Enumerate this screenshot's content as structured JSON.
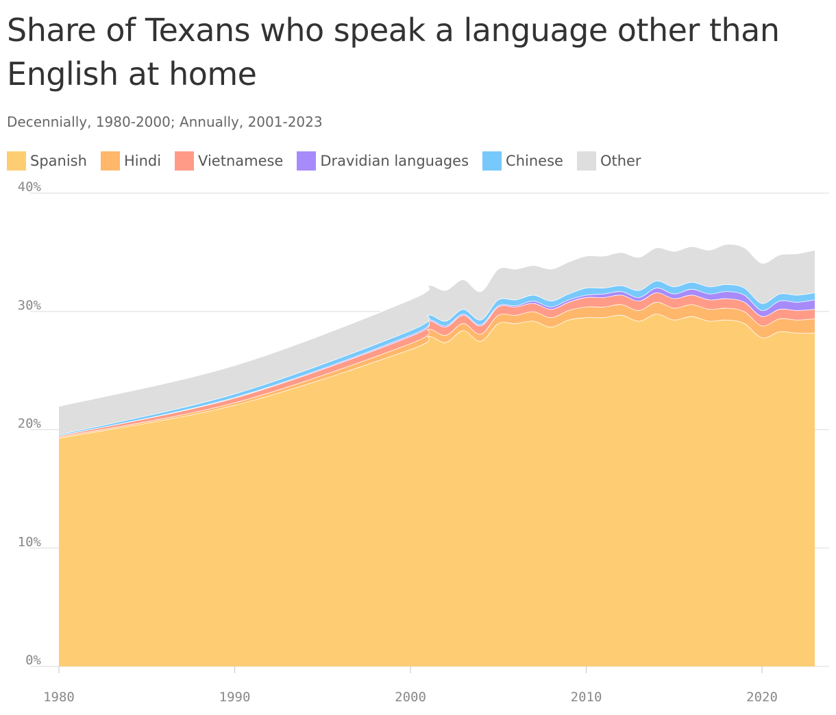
{
  "title": "Share of Texans who speak a language other than English at home",
  "subtitle": "Decennially, 1980-2000; Annually, 2001-2023",
  "colors": {
    "Spanish": "#fecd73",
    "Hindi": "#ffb76b",
    "Vietnamese": "#ff9b87",
    "Dravidian languages": "#a78bfa",
    "Chinese": "#77c9fc",
    "Other": "#dddedd",
    "grid": "#e2e2e2",
    "tick": "#888888"
  },
  "chart_data": {
    "type": "area",
    "stacked": true,
    "title": "Share of Texans who speak a language other than English at home",
    "subtitle": "Decennially, 1980-2000; Annually, 2001-2023",
    "xlabel": "",
    "ylabel": "",
    "ylim": [
      0,
      40
    ],
    "xlim": [
      1980,
      2023
    ],
    "legend_position": "top-left",
    "grid": true,
    "y_ticks": [
      0,
      10,
      20,
      30,
      40
    ],
    "y_tick_labels": [
      "0%",
      "10%",
      "20%",
      "30%",
      "40%"
    ],
    "x_ticks": [
      1980,
      1990,
      2000,
      2010,
      2020
    ],
    "x_tick_labels": [
      "1980",
      "1990",
      "2000",
      "2010",
      "2020"
    ],
    "x": [
      1980,
      1990,
      2000,
      2001,
      2002,
      2003,
      2004,
      2005,
      2006,
      2007,
      2008,
      2009,
      2010,
      2011,
      2012,
      2013,
      2014,
      2015,
      2016,
      2017,
      2018,
      2019,
      2020,
      2021,
      2022,
      2023
    ],
    "series": [
      {
        "name": "Spanish",
        "values": [
          19.3,
          22.1,
          26.8,
          27.9,
          27.4,
          28.4,
          27.5,
          29.0,
          29.0,
          29.2,
          28.7,
          29.3,
          29.5,
          29.5,
          29.7,
          29.2,
          29.8,
          29.3,
          29.6,
          29.2,
          29.3,
          29.0,
          27.8,
          28.3,
          28.2,
          28.2
        ]
      },
      {
        "name": "Hindi",
        "values": [
          0.1,
          0.2,
          0.5,
          0.6,
          0.6,
          0.6,
          0.6,
          0.7,
          0.7,
          0.8,
          0.8,
          0.8,
          0.9,
          0.9,
          0.9,
          0.9,
          1.0,
          1.0,
          1.0,
          1.0,
          1.0,
          1.0,
          1.0,
          1.1,
          1.1,
          1.2
        ]
      },
      {
        "name": "Vietnamese",
        "values": [
          0.1,
          0.4,
          0.6,
          0.7,
          0.7,
          0.7,
          0.7,
          0.7,
          0.7,
          0.7,
          0.7,
          0.7,
          0.8,
          0.8,
          0.8,
          0.8,
          0.8,
          0.8,
          0.8,
          0.8,
          0.8,
          0.8,
          0.8,
          0.8,
          0.8,
          0.8
        ]
      },
      {
        "name": "Dravidian languages",
        "values": [
          0.0,
          0.05,
          0.1,
          0.1,
          0.1,
          0.1,
          0.1,
          0.1,
          0.1,
          0.2,
          0.2,
          0.2,
          0.2,
          0.3,
          0.3,
          0.3,
          0.4,
          0.4,
          0.5,
          0.5,
          0.6,
          0.6,
          0.5,
          0.7,
          0.7,
          0.8
        ]
      },
      {
        "name": "Chinese",
        "values": [
          0.1,
          0.3,
          0.4,
          0.4,
          0.4,
          0.4,
          0.4,
          0.5,
          0.5,
          0.5,
          0.5,
          0.5,
          0.6,
          0.5,
          0.5,
          0.6,
          0.6,
          0.6,
          0.6,
          0.6,
          0.6,
          0.6,
          0.6,
          0.6,
          0.6,
          0.6
        ]
      },
      {
        "name": "Other",
        "values": [
          2.4,
          2.4,
          2.6,
          2.5,
          2.6,
          2.5,
          2.4,
          2.6,
          2.6,
          2.5,
          2.7,
          2.7,
          2.7,
          2.7,
          2.8,
          2.8,
          2.8,
          3.0,
          3.0,
          3.1,
          3.4,
          3.4,
          3.4,
          3.3,
          3.5,
          3.6
        ]
      }
    ]
  }
}
